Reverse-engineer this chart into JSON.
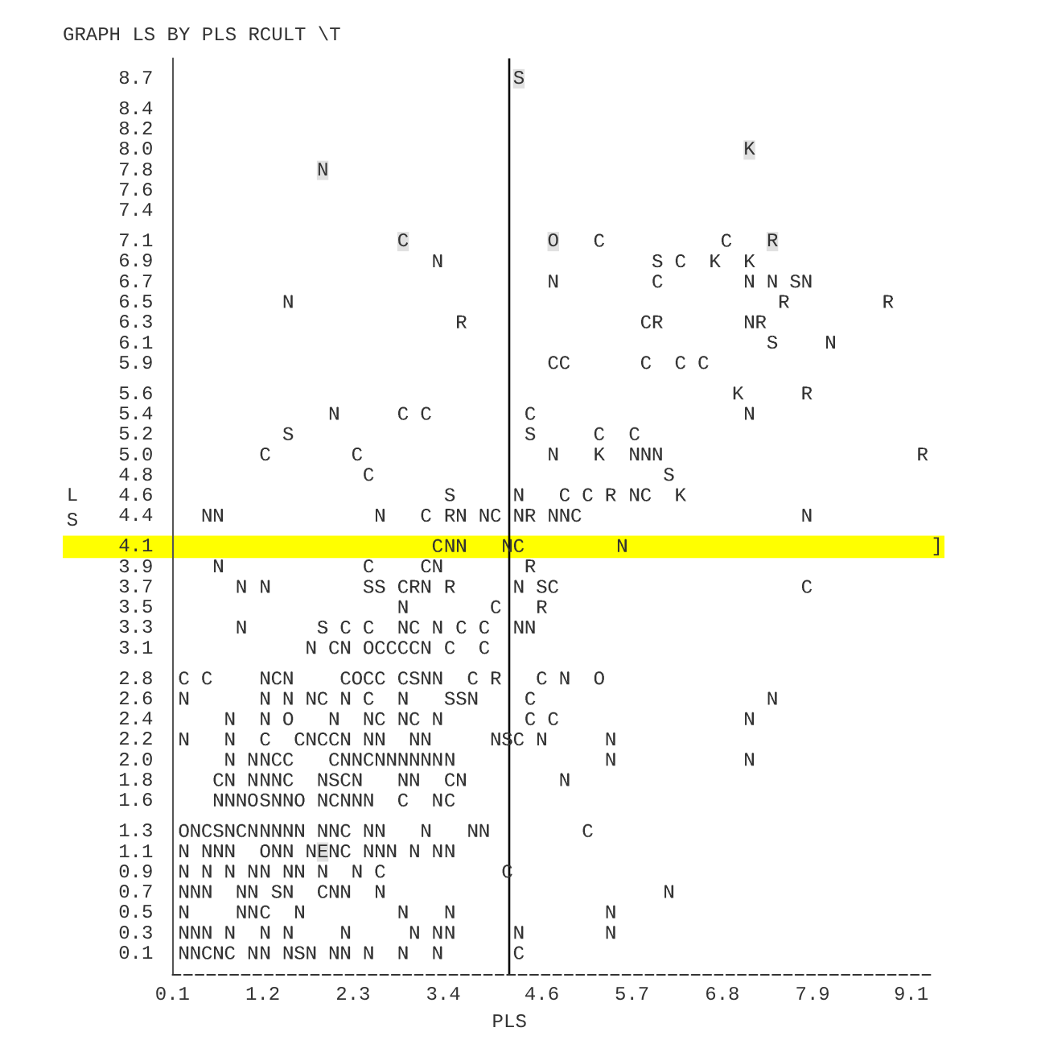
{
  "chart_data": {
    "type": "scatter",
    "title": "GRAPH LS BY PLS RCULT \\T",
    "xlabel": "PLS",
    "ylabel": "LS",
    "xlim": [
      0.1,
      9.35
    ],
    "ylim": [
      -0.1,
      8.9
    ],
    "xticks": [
      0.1,
      1.2,
      2.3,
      3.4,
      4.6,
      5.7,
      6.8,
      7.9,
      9.1
    ],
    "yticks": [
      0.1,
      0.3,
      0.5,
      0.7,
      0.9,
      1.1,
      1.3,
      1.6,
      1.8,
      {
        "value": 2,
        "label": "2.0"
      },
      2.2,
      2.4,
      2.6,
      2.8,
      3.1,
      3.3,
      3.5,
      3.7,
      3.9,
      4.1,
      4.4,
      4.6,
      4.8,
      {
        "value": 5,
        "label": "5.0"
      },
      5.2,
      5.4,
      5.6,
      5.9,
      6.1,
      6.3,
      6.5,
      6.7,
      6.9,
      7.1,
      7.4,
      7.6,
      7.8,
      {
        "value": 8,
        "label": "8.0"
      },
      8.2,
      8.4,
      8.7
    ],
    "ref_lines": [
      {
        "axis": "x",
        "value": 4.2,
        "color": "#000000"
      }
    ],
    "bands": [
      {
        "axis": "y",
        "from": 3.99,
        "to": 4.21,
        "color": "#ffff00"
      }
    ],
    "annotations": [
      "]"
    ],
    "series": [
      {
        "name": "N",
        "color": "#333333",
        "x": [
          1.93,
          3.33,
          4.74,
          7.13,
          7.41,
          7.83,
          1.51,
          7.13,
          8.12,
          2.07,
          7.13,
          4.74,
          5.73,
          5.87,
          6.01,
          4.32,
          5.73,
          0.52,
          0.66,
          2.63,
          3.62,
          3.9,
          4.32,
          4.74,
          4.88,
          7.83,
          3.48,
          3.62,
          4.18,
          5.58,
          0.66,
          3.33,
          0.94,
          1.23,
          3.19,
          4.32,
          2.91,
          0.94,
          2.91,
          3.33,
          4.32,
          4.46,
          1.79,
          2.21,
          3.19,
          1.23,
          1.51,
          3.19,
          3.33,
          4.88,
          0.24,
          1.23,
          1.51,
          1.79,
          2.21,
          2.91,
          3.76,
          7.41,
          0.8,
          1.23,
          2.07,
          2.49,
          2.91,
          3.33,
          7.13,
          0.24,
          0.8,
          1.79,
          2.21,
          2.49,
          2.63,
          3.05,
          3.19,
          4.04,
          4.6,
          5.44,
          0.8,
          1.08,
          1.23,
          2.21,
          2.35,
          2.63,
          2.77,
          2.91,
          3.05,
          3.19,
          3.33,
          3.48,
          5.44,
          7.13,
          0.8,
          1.08,
          1.23,
          1.37,
          1.93,
          2.35,
          2.91,
          3.05,
          3.62,
          4.88,
          0.66,
          0.8,
          0.94,
          1.37,
          1.51,
          1.93,
          2.21,
          2.35,
          2.49,
          3.33,
          0.38,
          0.8,
          1.08,
          1.23,
          1.37,
          1.51,
          1.65,
          1.93,
          2.07,
          2.49,
          2.63,
          3.19,
          3.76,
          3.9,
          0.24,
          0.52,
          0.66,
          0.8,
          1.37,
          1.51,
          1.79,
          2.07,
          2.49,
          2.63,
          2.77,
          3.05,
          3.33,
          3.48,
          0.24,
          0.52,
          0.8,
          1.08,
          1.23,
          1.51,
          1.65,
          1.93,
          2.35,
          0.24,
          0.38,
          0.52,
          0.94,
          1.08,
          1.51,
          2.07,
          2.21,
          2.63,
          6.15,
          0.24,
          0.94,
          1.08,
          1.65,
          2.91,
          3.48,
          5.44,
          0.24,
          0.38,
          0.52,
          0.8,
          1.23,
          1.51,
          2.21,
          3.05,
          3.33,
          3.48,
          4.32,
          5.44,
          0.24,
          0.38,
          0.66,
          1.08,
          1.23,
          1.51,
          1.79,
          2.07,
          2.21,
          2.49,
          2.91,
          3.33
        ],
        "values": [
          7.8,
          6.9,
          6.7,
          6.7,
          6.7,
          6.7,
          6.5,
          6.3,
          6.1,
          5.4,
          5.4,
          5,
          5,
          5,
          5,
          4.6,
          4.6,
          4.4,
          4.4,
          4.4,
          4.4,
          4.4,
          4.4,
          4.4,
          4.4,
          4.4,
          4.1,
          4.1,
          4.1,
          4.1,
          3.9,
          3.9,
          3.7,
          3.7,
          3.7,
          3.7,
          3.5,
          3.3,
          3.3,
          3.3,
          3.3,
          3.3,
          3.1,
          3.1,
          3.1,
          2.8,
          2.8,
          2.8,
          2.8,
          2.8,
          2.6,
          2.6,
          2.6,
          2.6,
          2.6,
          2.6,
          2.6,
          2.6,
          2.4,
          2.4,
          2.4,
          2.4,
          2.4,
          2.4,
          2.4,
          2.2,
          2.2,
          2.2,
          2.2,
          2.2,
          2.2,
          2.2,
          2.2,
          2.2,
          2.2,
          2.2,
          2,
          2,
          2,
          2,
          2,
          2,
          2,
          2,
          2,
          2,
          2,
          2,
          2,
          2,
          1.8,
          1.8,
          1.8,
          1.8,
          1.8,
          1.8,
          1.8,
          1.8,
          1.8,
          1.8,
          1.6,
          1.6,
          1.6,
          1.6,
          1.6,
          1.6,
          1.6,
          1.6,
          1.6,
          1.6,
          1.3,
          1.3,
          1.3,
          1.3,
          1.3,
          1.3,
          1.3,
          1.3,
          1.3,
          1.3,
          1.3,
          1.3,
          1.3,
          1.3,
          1.1,
          1.1,
          1.1,
          1.1,
          1.1,
          1.1,
          1.1,
          1.1,
          1.1,
          1.1,
          1.1,
          1.1,
          1.1,
          1.1,
          0.9,
          0.9,
          0.9,
          0.9,
          0.9,
          0.9,
          0.9,
          0.9,
          0.9,
          0.7,
          0.7,
          0.7,
          0.7,
          0.7,
          0.7,
          0.7,
          0.7,
          0.7,
          0.7,
          0.5,
          0.5,
          0.5,
          0.5,
          0.5,
          0.5,
          0.5,
          0.3,
          0.3,
          0.3,
          0.3,
          0.3,
          0.3,
          0.3,
          0.3,
          0.3,
          0.3,
          0.3,
          0.3,
          0.1,
          0.1,
          0.1,
          0.1,
          0.1,
          0.1,
          0.1,
          0.1,
          0.1,
          0.1,
          0.1,
          0.1
        ]
      },
      {
        "name": "C",
        "color": "#333333",
        "x": [
          2.91,
          5.3,
          6.85,
          6.29,
          6.01,
          5.87,
          4.74,
          4.88,
          5.87,
          6.29,
          6.57,
          2.91,
          3.19,
          4.46,
          5.3,
          5.73,
          1.23,
          2.35,
          2.49,
          4.88,
          5.16,
          5.87,
          3.19,
          4.04,
          5.02,
          3.33,
          4.32,
          2.49,
          3.19,
          2.91,
          4.74,
          7.83,
          4.04,
          2.21,
          2.49,
          3.05,
          3.62,
          3.9,
          2.07,
          2.63,
          2.77,
          2.91,
          3.05,
          3.48,
          3.9,
          0.24,
          0.52,
          1.37,
          2.21,
          2.49,
          2.63,
          2.91,
          3.76,
          4.6,
          1.93,
          2.49,
          4.46,
          2.63,
          3.05,
          4.46,
          4.74,
          1.23,
          1.65,
          1.93,
          2.07,
          4.32,
          1.37,
          1.51,
          2.07,
          2.49,
          0.66,
          1.51,
          2.21,
          3.48,
          2.07,
          2.91,
          3.48,
          0.52,
          0.94,
          2.21,
          5.16,
          2.21,
          2.63,
          4.18,
          1.93,
          1.23,
          0.52,
          0.8,
          4.32
        ],
        "values": [
          7.1,
          7.1,
          7.1,
          6.9,
          6.7,
          6.3,
          5.9,
          5.9,
          5.9,
          5.9,
          5.9,
          5.4,
          5.4,
          5.4,
          5.2,
          5.2,
          5,
          5,
          4.8,
          4.6,
          4.6,
          4.6,
          4.4,
          4.4,
          4.4,
          4.1,
          4.1,
          3.9,
          3.9,
          3.7,
          3.7,
          3.7,
          3.5,
          3.3,
          3.3,
          3.3,
          3.3,
          3.3,
          3.1,
          3.1,
          3.1,
          3.1,
          3.1,
          3.1,
          3.1,
          2.8,
          2.8,
          2.8,
          2.8,
          2.8,
          2.8,
          2.8,
          2.8,
          2.8,
          2.6,
          2.6,
          2.6,
          2.4,
          2.4,
          2.4,
          2.4,
          2.2,
          2.2,
          2.2,
          2.2,
          2.2,
          2,
          2,
          2,
          2,
          1.8,
          1.8,
          1.8,
          1.8,
          1.6,
          1.6,
          1.6,
          1.3,
          1.3,
          1.3,
          1.3,
          1.1,
          0.9,
          0.9,
          0.7,
          0.5,
          0.1,
          0.1,
          0.1
        ]
      },
      {
        "name": "S",
        "color": "#333333",
        "x": [
          4.32,
          6.01,
          7.69,
          7.41,
          1.51,
          4.46,
          6.15,
          3.48,
          2.49,
          2.63,
          4.6,
          1.93,
          3.05,
          3.48,
          3.62,
          4.18,
          2.07,
          1.23,
          0.66,
          1.37,
          1.65
        ],
        "values": [
          8.7,
          6.9,
          6.7,
          6.1,
          5.2,
          5.2,
          4.8,
          4.6,
          3.7,
          3.7,
          3.7,
          3.3,
          2.8,
          2.6,
          2.6,
          2.2,
          1.8,
          1.6,
          1.3,
          0.7,
          0.1
        ]
      },
      {
        "name": "R",
        "color": "#333333",
        "x": [
          7.41,
          7.55,
          8.82,
          3.62,
          6.01,
          7.27,
          7.83,
          9.24,
          5.44,
          3.48,
          4.46,
          4.46,
          3.05,
          3.48,
          4.6,
          4.04
        ],
        "values": [
          7.1,
          6.5,
          6.5,
          6.3,
          6.3,
          6.3,
          5.6,
          5,
          4.6,
          4.4,
          4.4,
          3.9,
          3.7,
          3.7,
          3.5,
          2.8
        ]
      },
      {
        "name": "K",
        "color": "#333333",
        "x": [
          7.13,
          6.71,
          7.13,
          6.99,
          5.3,
          6.29
        ],
        "values": [
          8,
          6.9,
          6.9,
          5.6,
          5,
          4.6
        ]
      },
      {
        "name": "O",
        "color": "#333333",
        "x": [
          4.74,
          2.49,
          2.35,
          5.3,
          1.51,
          1.08,
          1.65,
          0.24,
          1.23
        ],
        "values": [
          7.1,
          3.1,
          2.8,
          2.8,
          2.4,
          1.6,
          1.6,
          1.3,
          1.1
        ]
      },
      {
        "name": "E",
        "color": "#333333",
        "x": [
          1.93
        ],
        "values": [
          1.1
        ]
      }
    ]
  }
}
